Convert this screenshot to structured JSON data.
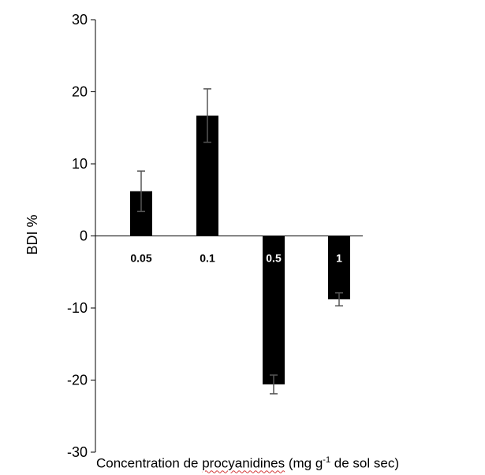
{
  "chart_data": {
    "type": "bar",
    "title": "",
    "ylabel": "BDI %",
    "xlabel_parts": {
      "pre": "Concentration de ",
      "underlined": "procyanidines",
      "mid": " (mg g",
      "sup": "-1",
      "post": " de sol sec)"
    },
    "categories": [
      "0.05",
      "0.1",
      "0.5",
      "1"
    ],
    "values": [
      6.2,
      16.7,
      -20.6,
      -8.8
    ],
    "errors": [
      2.8,
      3.7,
      1.3,
      0.9
    ],
    "ylim": [
      -30,
      30
    ],
    "yticks": [
      -30,
      -20,
      -10,
      0,
      10,
      20,
      30
    ],
    "bar_color": "#000000",
    "error_color": "#555555",
    "grid": false
  }
}
